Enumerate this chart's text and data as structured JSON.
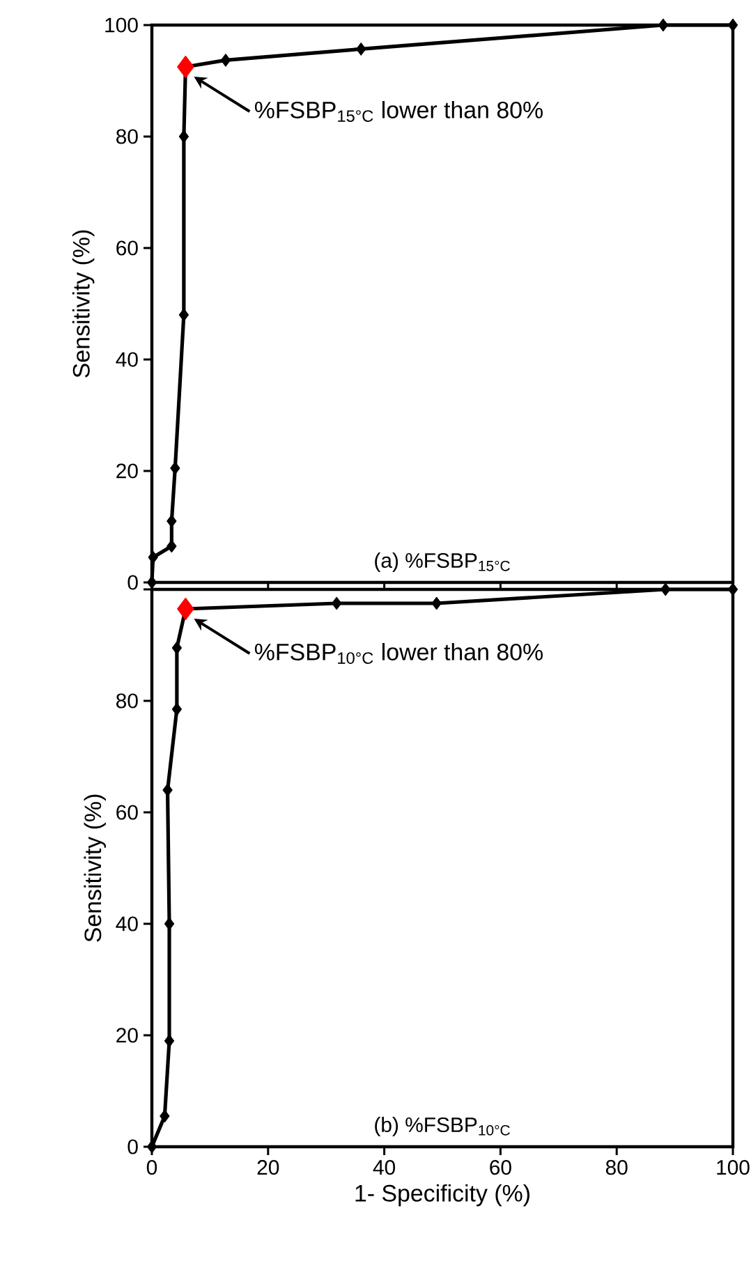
{
  "chart_data": [
    {
      "type": "line",
      "title": "(a) %FSBP$_{15°C}$",
      "ylabel": "Sensitivity (%)",
      "xlim": [
        0,
        100
      ],
      "ylim": [
        0,
        100
      ],
      "xticks": [
        {
          "value": 0,
          "label": null
        },
        {
          "value": 20,
          "label": null
        },
        {
          "value": 40,
          "label": null
        },
        {
          "value": 60,
          "label": null
        },
        {
          "value": 80,
          "label": null
        },
        {
          "value": 100,
          "label": null
        }
      ],
      "yticks": [
        0,
        20,
        40,
        60,
        80,
        100
      ],
      "tick_labels": "y",
      "series": [
        {
          "color": "#000000",
          "marker": "diamond",
          "x": [
            0,
            0.2,
            3.4,
            3.4,
            4,
            5.5,
            5.5,
            5.8,
            12.7,
            36,
            88,
            100
          ],
          "values": [
            0,
            4.5,
            6.5,
            11,
            20.5,
            48,
            80,
            92.5,
            93.7,
            95.7,
            100,
            100
          ]
        },
        {
          "type": "scatter",
          "color": "#ff0000",
          "marker": "diamond",
          "x": [
            5.8
          ],
          "values": [
            92.5
          ]
        }
      ],
      "annotations": [
        "%FSBP$_{15°C}$ lower than 80%"
      ]
    },
    {
      "type": "line",
      "title": "(b) %FSBP$_{10°C}$",
      "xlabel": "1- Specificity (%)",
      "ylabel": "Sensitivity (%)",
      "xlim": [
        0,
        100
      ],
      "ylim": [
        0,
        100
      ],
      "xticks": [
        0,
        20,
        40,
        60,
        80,
        100
      ],
      "yticks": [
        0,
        20,
        40,
        60,
        80,
        {
          "value": 100,
          "label": null
        }
      ],
      "series": [
        {
          "color": "#000000",
          "marker": "diamond",
          "x": [
            0,
            2.2,
            3,
            3,
            2.7,
            4.3,
            4.3,
            5.8,
            31.8,
            49,
            88.4,
            100
          ],
          "values": [
            0,
            5.5,
            19,
            40,
            64,
            78.5,
            89.5,
            96.5,
            97.5,
            97.5,
            100,
            100
          ]
        },
        {
          "type": "scatter",
          "color": "#ff0000",
          "marker": "diamond",
          "x": [
            5.8
          ],
          "values": [
            96.5
          ]
        }
      ],
      "annotations": [
        "%FSBP$_{10°C}$ lower than 80%"
      ]
    }
  ]
}
